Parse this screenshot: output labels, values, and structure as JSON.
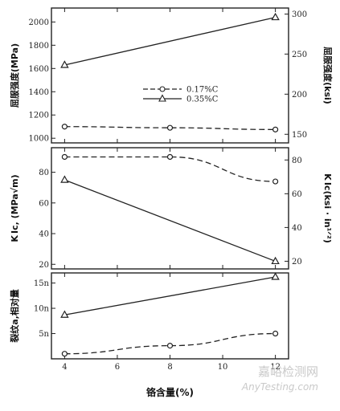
{
  "chart_data": {
    "type": "line",
    "x_label": "铬含量(%)",
    "x_ticks": [
      "4",
      "6",
      "8",
      "10",
      "12"
    ],
    "x_range": [
      3.5,
      12.5
    ],
    "legend": {
      "position": "right",
      "entries": [
        {
          "name": "0.17%C",
          "marker": "circle",
          "dash": "dashed"
        },
        {
          "name": "0.35%C",
          "marker": "triangle",
          "dash": "solid"
        }
      ]
    },
    "panels": [
      {
        "id": "yield",
        "y_label_left": "屈服强度(MPa)",
        "y_label_right": "屈服强度(ksi)",
        "y_range": [
          960,
          2120
        ],
        "left_ticks": [
          {
            "v": 1000,
            "t": "1000"
          },
          {
            "v": 1200,
            "t": "1200"
          },
          {
            "v": 1400,
            "t": "1400"
          },
          {
            "v": 1600,
            "t": "1600"
          },
          {
            "v": 1800,
            "t": "1800"
          },
          {
            "v": 2000,
            "t": "2000"
          }
        ],
        "right_ticks": [
          {
            "v": 1034,
            "t": "150"
          },
          {
            "v": 1379,
            "t": "200"
          },
          {
            "v": 1724,
            "t": "250"
          },
          {
            "v": 2068,
            "t": "300"
          }
        ],
        "series": [
          {
            "name": "0.17%C",
            "marker": "circle",
            "dash": "dashed",
            "x": [
              4,
              8,
              12
            ],
            "y": [
              1100,
              1090,
              1075
            ]
          },
          {
            "name": "0.35%C",
            "marker": "triangle",
            "dash": "solid",
            "x": [
              4,
              12
            ],
            "y": [
              1630,
              2040
            ]
          }
        ]
      },
      {
        "id": "toughness",
        "y_label_left": "K Ic, (MPa√m)",
        "y_label_right": "K Ic(ksi · in¹ᐟ²)",
        "y_range": [
          17,
          96
        ],
        "left_ticks": [
          {
            "v": 20,
            "t": "20"
          },
          {
            "v": 40,
            "t": "40"
          },
          {
            "v": 60,
            "t": "60"
          },
          {
            "v": 80,
            "t": "80"
          }
        ],
        "right_ticks": [
          {
            "v": 22,
            "t": "20"
          },
          {
            "v": 44,
            "t": "40"
          },
          {
            "v": 66,
            "t": "60"
          },
          {
            "v": 88,
            "t": "80"
          }
        ],
        "series": [
          {
            "name": "0.17%C",
            "marker": "circle",
            "dash": "dashed",
            "x": [
              4,
              8,
              12
            ],
            "y": [
              90,
              90,
              74
            ]
          },
          {
            "name": "0.35%C",
            "marker": "triangle",
            "dash": "solid",
            "x": [
              4,
              12
            ],
            "y": [
              75,
              22
            ]
          }
        ]
      },
      {
        "id": "crack",
        "y_label_left": "裂纹a,相对量",
        "y_label_right": "",
        "y_range": [
          0,
          17
        ],
        "left_ticks": [
          {
            "v": 5,
            "t": "5n"
          },
          {
            "v": 10,
            "t": "10n"
          },
          {
            "v": 15,
            "t": "15n"
          }
        ],
        "right_ticks": [],
        "series": [
          {
            "name": "0.17%C",
            "marker": "circle",
            "dash": "dashed",
            "x": [
              4,
              8,
              12
            ],
            "y": [
              1,
              2.6,
              5
            ]
          },
          {
            "name": "0.35%C",
            "marker": "triangle",
            "dash": "solid",
            "x": [
              4,
              12
            ],
            "y": [
              8.7,
              16.2
            ]
          }
        ]
      }
    ],
    "watermark": {
      "line1": "嘉峪检测网",
      "line2": "AnyTesting.com"
    }
  }
}
